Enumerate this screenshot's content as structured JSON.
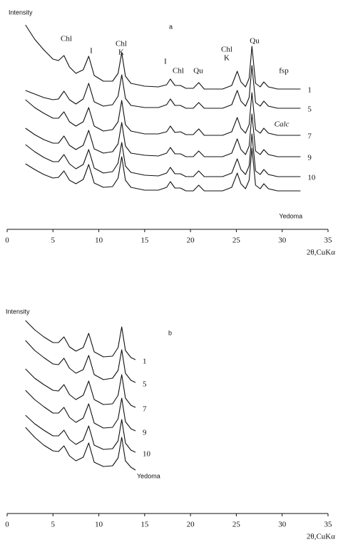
{
  "chart_data": [
    {
      "type": "line",
      "panel_label": "a",
      "ylabel": "Intensity",
      "xlabel": "2θ,CuKα",
      "xlim": [
        0,
        35
      ],
      "xticks": [
        0,
        5,
        10,
        15,
        20,
        25,
        30,
        35
      ],
      "ylim": [
        0,
        314
      ],
      "x": [
        2,
        3,
        4,
        5,
        5.6,
        6.2,
        6.8,
        7.5,
        8.3,
        8.9,
        9.5,
        10.5,
        11.5,
        12.1,
        12.5,
        12.9,
        13.5,
        15,
        16.5,
        17.4,
        17.8,
        18.3,
        18.9,
        19.5,
        20.3,
        20.9,
        21.5,
        22.5,
        23.5,
        24.5,
        25.1,
        25.5,
        26,
        26.4,
        26.7,
        27.1,
        27.6,
        28,
        28.5,
        29.5,
        30.5,
        31.5,
        32
      ],
      "series": [
        {
          "name": "1",
          "color": "#111111",
          "values": [
            287,
            267,
            252,
            239,
            237,
            244,
            228,
            219,
            224,
            243,
            216,
            208,
            208,
            219,
            248,
            215,
            205,
            201,
            200,
            203,
            211,
            202,
            202,
            198,
            198,
            206,
            197,
            197,
            197,
            202,
            222,
            207,
            200,
            212,
            257,
            205,
            200,
            207,
            200,
            197,
            197,
            197,
            197
          ]
        },
        {
          "name": "5",
          "color": "#111111",
          "values": [
            195,
            190,
            185,
            182,
            183,
            194,
            182,
            176,
            183,
            205,
            179,
            173,
            175,
            187,
            217,
            184,
            174,
            171,
            171,
            175,
            183,
            174,
            174,
            170,
            170,
            178,
            170,
            170,
            170,
            175,
            195,
            180,
            173,
            185,
            230,
            178,
            173,
            180,
            173,
            170,
            170,
            170,
            170
          ]
        },
        {
          "name": "7",
          "color": "#111111",
          "values": [
            182,
            171,
            163,
            156,
            156,
            165,
            151,
            145,
            151,
            171,
            145,
            138,
            140,
            151,
            181,
            147,
            138,
            134,
            134,
            137,
            145,
            136,
            137,
            133,
            133,
            141,
            132,
            132,
            132,
            137,
            157,
            142,
            135,
            147,
            192,
            140,
            135,
            142,
            135,
            132,
            132,
            132,
            132
          ]
        },
        {
          "name": "9",
          "color": "#111111",
          "values": [
            142,
            133,
            126,
            121,
            121,
            131,
            118,
            112,
            118,
            139,
            113,
            107,
            109,
            120,
            150,
            117,
            107,
            104,
            103,
            107,
            115,
            106,
            106,
            102,
            102,
            110,
            102,
            102,
            102,
            107,
            127,
            112,
            105,
            117,
            162,
            110,
            105,
            112,
            105,
            102,
            102,
            102,
            102
          ]
        },
        {
          "name": "10",
          "color": "#111111",
          "values": [
            119,
            109,
            101,
            95,
            95,
            105,
            92,
            85,
            91,
            112,
            86,
            79,
            81,
            93,
            122,
            89,
            80,
            76,
            75,
            79,
            87,
            78,
            78,
            74,
            74,
            82,
            74,
            74,
            74,
            79,
            99,
            84,
            77,
            89,
            134,
            82,
            77,
            84,
            77,
            74,
            74,
            74,
            74
          ]
        },
        {
          "name": "Yedoma",
          "color": "#111111",
          "values": [
            92,
            84,
            77,
            72,
            73,
            82,
            69,
            64,
            70,
            91,
            65,
            59,
            60,
            72,
            102,
            69,
            59,
            55,
            55,
            59,
            67,
            58,
            58,
            54,
            54,
            62,
            54,
            54,
            54,
            59,
            79,
            64,
            57,
            69,
            114,
            62,
            57,
            64,
            57,
            54,
            54,
            54,
            54
          ]
        }
      ],
      "annotations": [
        "Chl",
        "I",
        "Chl",
        "K",
        "I",
        "Chl",
        "Qu",
        "Chl",
        "K",
        "Qu",
        "fsp",
        "Calc"
      ]
    },
    {
      "type": "line",
      "panel_label": "b",
      "ylabel": "Intensity",
      "xlabel": "2θ,CuKα",
      "xlim": [
        0,
        35
      ],
      "xticks": [
        0,
        5,
        10,
        15,
        20,
        25,
        30,
        35
      ],
      "ylim": [
        0,
        293
      ],
      "x": [
        2,
        3,
        4,
        5,
        5.6,
        6.2,
        6.8,
        7.5,
        8.3,
        8.9,
        9.5,
        10.5,
        11.5,
        12.1,
        12.5,
        12.9,
        13.5,
        14
      ],
      "series": [
        {
          "name": "1",
          "color": "#111111",
          "values": [
            271,
            258,
            248,
            240,
            240,
            248,
            234,
            228,
            233,
            253,
            227,
            220,
            221,
            233,
            262,
            229,
            219,
            216
          ]
        },
        {
          "name": "5",
          "color": "#111111",
          "values": [
            243,
            229,
            219,
            210,
            209,
            218,
            204,
            197,
            202,
            222,
            195,
            188,
            190,
            201,
            230,
            197,
            187,
            184
          ]
        },
        {
          "name": "7",
          "color": "#111111",
          "values": [
            203,
            190,
            181,
            173,
            172,
            181,
            167,
            160,
            166,
            186,
            160,
            153,
            154,
            166,
            195,
            162,
            152,
            149
          ]
        },
        {
          "name": "9",
          "color": "#111111",
          "values": [
            173,
            160,
            150,
            141,
            141,
            149,
            135,
            128,
            134,
            154,
            127,
            120,
            121,
            133,
            162,
            129,
            119,
            116
          ]
        },
        {
          "name": "10",
          "color": "#111111",
          "values": [
            138,
            126,
            117,
            109,
            109,
            117,
            104,
            97,
            103,
            123,
            96,
            90,
            91,
            102,
            132,
            99,
            89,
            86
          ]
        },
        {
          "name": "Yedoma",
          "color": "#111111",
          "values": [
            121,
            107,
            96,
            88,
            87,
            95,
            81,
            74,
            79,
            99,
            72,
            66,
            67,
            78,
            107,
            74,
            65,
            61
          ]
        }
      ]
    }
  ]
}
